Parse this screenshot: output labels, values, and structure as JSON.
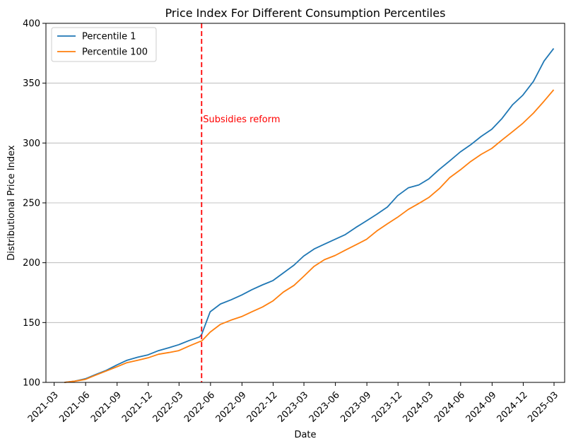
{
  "chart_data": {
    "type": "line",
    "title": "Price Index For Different Consumption Percentiles",
    "xlabel": "Date",
    "ylabel": "Distributional Price Index",
    "ylim": [
      100,
      400
    ],
    "yticks": [
      100,
      150,
      200,
      250,
      300,
      350,
      400
    ],
    "xlim": [
      "2021-02-05",
      "2025-04-01"
    ],
    "xticks": [
      "2021-03",
      "2021-06",
      "2021-09",
      "2021-12",
      "2022-03",
      "2022-06",
      "2022-09",
      "2022-12",
      "2023-03",
      "2023-06",
      "2023-09",
      "2023-12",
      "2024-03",
      "2024-06",
      "2024-09",
      "2024-12",
      "2025-03"
    ],
    "grid": "y",
    "legend": "top-left",
    "x": [
      "2021-03-31",
      "2021-04-30",
      "2021-05-31",
      "2021-06-30",
      "2021-07-31",
      "2021-08-31",
      "2021-09-30",
      "2021-10-31",
      "2021-11-30",
      "2021-12-31",
      "2022-01-31",
      "2022-02-28",
      "2022-03-31",
      "2022-04-30",
      "2022-05-06",
      "2022-05-31",
      "2022-06-30",
      "2022-07-31",
      "2022-08-31",
      "2022-09-30",
      "2022-10-31",
      "2022-11-30",
      "2022-12-31",
      "2023-01-31",
      "2023-02-28",
      "2023-03-31",
      "2023-04-30",
      "2023-05-31",
      "2023-06-30",
      "2023-07-31",
      "2023-08-31",
      "2023-09-30",
      "2023-10-31",
      "2023-11-30",
      "2023-12-31",
      "2024-01-31",
      "2024-02-29",
      "2024-03-31",
      "2024-04-30",
      "2024-05-31",
      "2024-06-30",
      "2024-07-31",
      "2024-08-31",
      "2024-09-30",
      "2024-10-31",
      "2024-11-30",
      "2024-12-31",
      "2025-01-31",
      "2025-02-28"
    ],
    "series": [
      {
        "name": "Percentile 1",
        "color": "#1f77b4",
        "values": [
          100.0,
          101.0,
          103.0,
          106.5,
          110.0,
          114.5,
          118.5,
          121.0,
          123.0,
          126.5,
          129.0,
          131.5,
          135.0,
          138.0,
          140.0,
          159.0,
          165.5,
          169.0,
          173.0,
          177.5,
          181.5,
          185.0,
          191.5,
          198.0,
          205.5,
          211.5,
          215.5,
          219.5,
          223.5,
          229.5,
          235.0,
          240.5,
          246.5,
          256.0,
          262.5,
          265.0,
          270.0,
          278.0,
          285.0,
          292.5,
          298.5,
          305.5,
          311.5,
          320.5,
          332.0,
          340.0,
          351.5,
          368.5,
          379.0
        ]
      },
      {
        "name": "Percentile 100",
        "color": "#ff7f0e",
        "values": [
          100.0,
          101.0,
          102.5,
          106.0,
          109.5,
          113.0,
          116.5,
          118.5,
          120.5,
          123.5,
          125.0,
          126.5,
          130.5,
          134.0,
          134.5,
          142.0,
          148.5,
          152.0,
          155.0,
          159.0,
          163.0,
          168.0,
          175.5,
          181.0,
          188.5,
          197.0,
          202.5,
          206.0,
          210.5,
          215.0,
          219.5,
          226.5,
          232.5,
          238.0,
          244.5,
          249.5,
          254.5,
          262.0,
          271.0,
          277.5,
          284.5,
          290.5,
          295.5,
          302.5,
          309.5,
          316.5,
          325.0,
          335.0,
          344.5
        ]
      }
    ],
    "annotations": [
      {
        "type": "vline",
        "x": "2022-05-06",
        "color": "#ff0000",
        "style": "dashed",
        "label": "Subsidies reform"
      }
    ]
  }
}
